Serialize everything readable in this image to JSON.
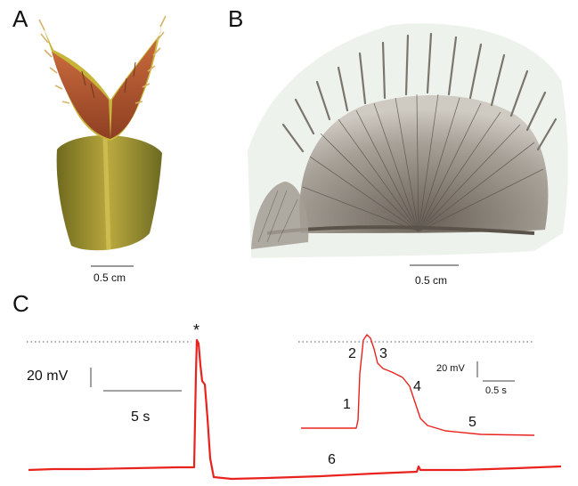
{
  "panels": {
    "a": {
      "label": "A",
      "scale_label": "0.5 cm"
    },
    "b": {
      "label": "B",
      "scale_label": "0.5 cm"
    },
    "c": {
      "label": "C",
      "peak_marker": "*",
      "main_scale": {
        "voltage": "20 mV",
        "time": "5 s"
      },
      "inset_scale": {
        "voltage": "20 mV",
        "time": "0.5 s"
      },
      "phase_labels": [
        "1",
        "2",
        "3",
        "4",
        "5",
        "6"
      ]
    }
  },
  "colors": {
    "trace": "#e8231e",
    "flytrap_lobe": "#b0542d",
    "flytrap_rim": "#c7b53a",
    "flytrap_stem": "#8a8a2a",
    "leaf_tissue": "#9a948c"
  },
  "icons": {
    "a": "venus-flytrap-photo",
    "b": "cleared-leaf-micrograph"
  }
}
